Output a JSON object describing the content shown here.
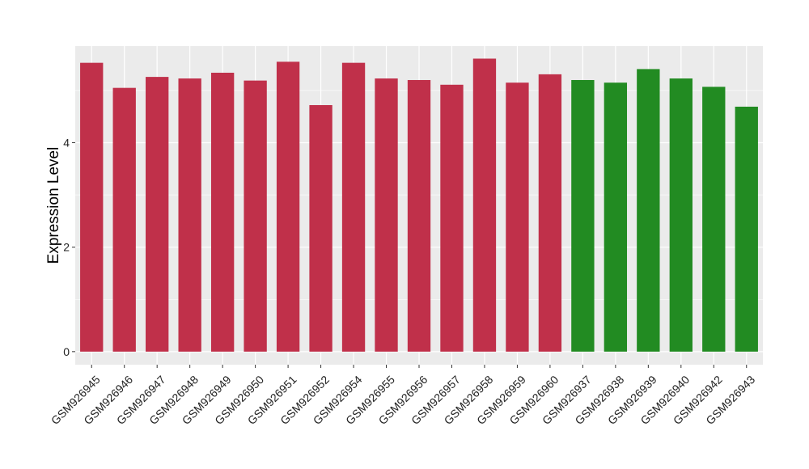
{
  "chart_data": {
    "type": "bar",
    "title": "",
    "xlabel": "",
    "ylabel": "Expression Level",
    "ylim": [
      -0.25,
      5.85
    ],
    "yticks": [
      0,
      2,
      4
    ],
    "ytick_labels": [
      "0",
      "2",
      "4"
    ],
    "grid": true,
    "legend": "none",
    "categories": [
      "GSM926945",
      "GSM926946",
      "GSM926947",
      "GSM926948",
      "GSM926949",
      "GSM926950",
      "GSM926951",
      "GSM926952",
      "GSM926954",
      "GSM926955",
      "GSM926956",
      "GSM926957",
      "GSM926958",
      "GSM926959",
      "GSM926960",
      "GSM926937",
      "GSM926938",
      "GSM926939",
      "GSM926940",
      "GSM926942",
      "GSM926943"
    ],
    "values": [
      5.53,
      5.05,
      5.26,
      5.23,
      5.34,
      5.19,
      5.55,
      4.72,
      5.53,
      5.23,
      5.2,
      5.11,
      5.61,
      5.15,
      5.31,
      5.2,
      5.15,
      5.41,
      5.23,
      5.07,
      4.69
    ],
    "bar_colors": [
      "#C0304A",
      "#C0304A",
      "#C0304A",
      "#C0304A",
      "#C0304A",
      "#C0304A",
      "#C0304A",
      "#C0304A",
      "#C0304A",
      "#C0304A",
      "#C0304A",
      "#C0304A",
      "#C0304A",
      "#C0304A",
      "#C0304A",
      "#228B22",
      "#228B22",
      "#228B22",
      "#228B22",
      "#228B22",
      "#228B22"
    ],
    "panel_background": "#EBEBEB",
    "grid_color": "#FFFFFF"
  }
}
